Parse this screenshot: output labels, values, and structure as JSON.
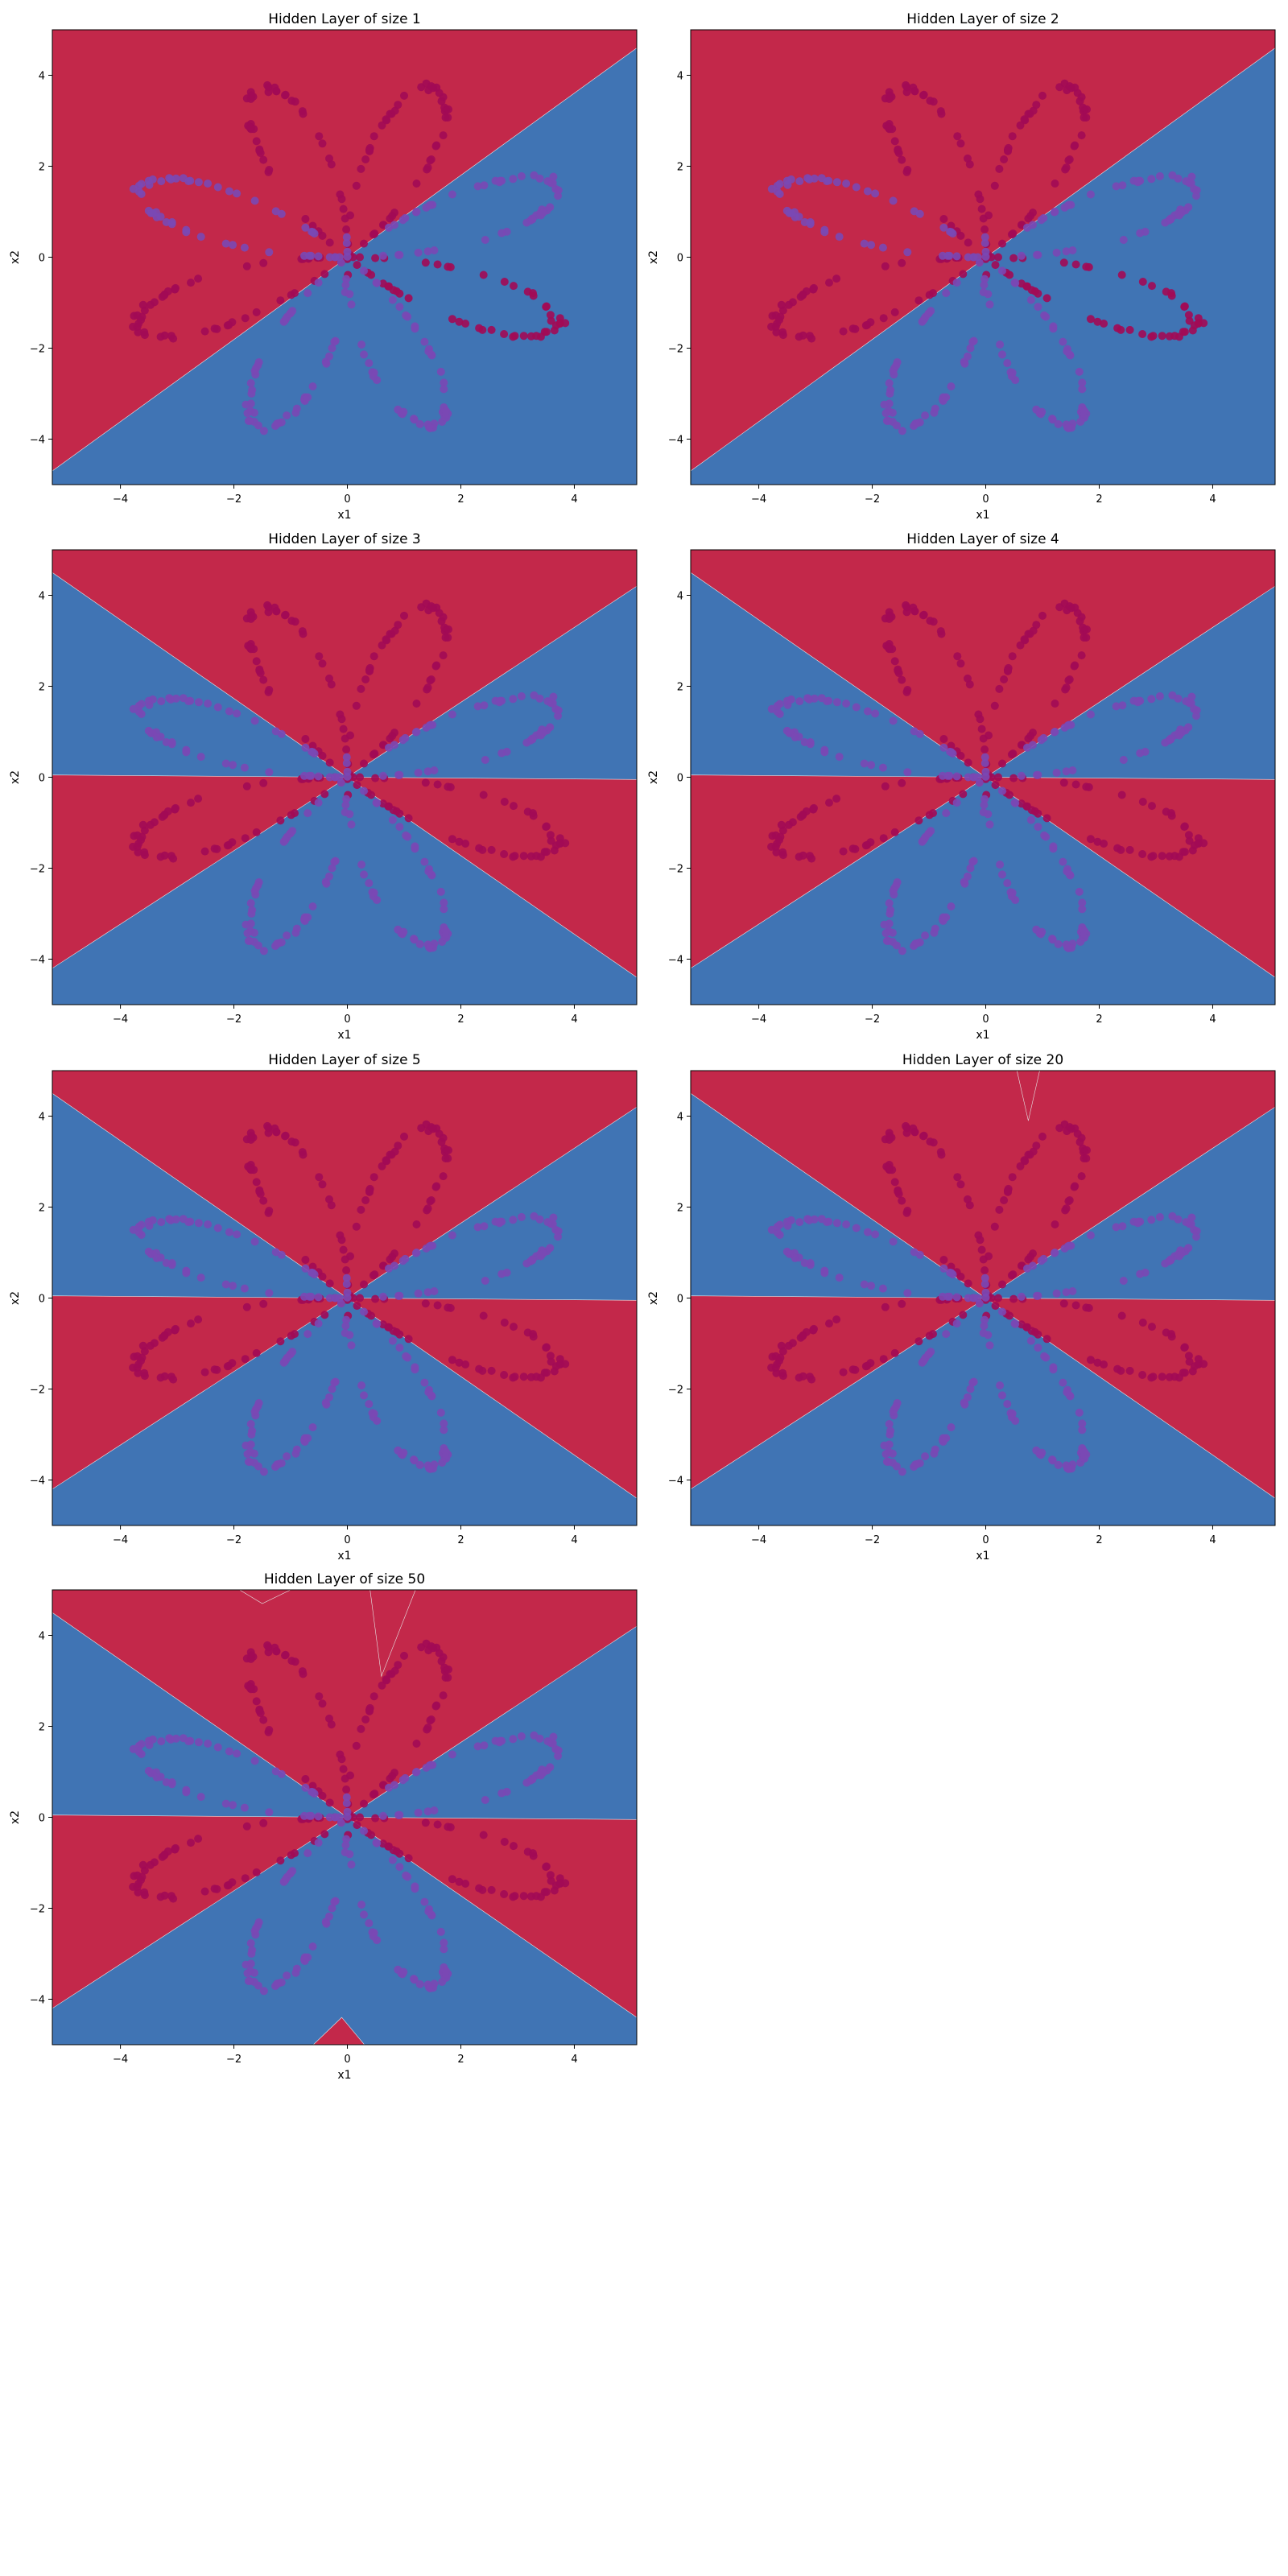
{
  "figure": {
    "colors": {
      "red_region": "#c3284a",
      "blue_region": "#4074b4",
      "red_point": "#a20a55",
      "blue_point": "#7a48b4",
      "boundary": "#e6e6e6"
    }
  },
  "chart_data": [
    {
      "type": "scatter",
      "title": "Hidden Layer of size 1",
      "xlabel": "x1",
      "ylabel": "x2",
      "xlim": [
        -5.2,
        5.1
      ],
      "ylim": [
        -5.0,
        5.0
      ],
      "xticks": [
        -4,
        -2,
        0,
        2,
        4
      ],
      "yticks": [
        -4,
        -2,
        0,
        2,
        4
      ],
      "grid": false,
      "series": [
        {
          "values": []
        },
        {
          "values": []
        }
      ]
    },
    {
      "type": "scatter",
      "title": "Hidden Layer of size 2",
      "xlabel": "x1",
      "ylabel": "x2",
      "xlim": [
        -5.2,
        5.1
      ],
      "ylim": [
        -5.0,
        5.0
      ],
      "xticks": [
        -4,
        -2,
        0,
        2,
        4
      ],
      "yticks": [
        -4,
        -2,
        0,
        2,
        4
      ],
      "grid": false,
      "series": [
        {
          "values": []
        },
        {
          "values": []
        }
      ]
    },
    {
      "type": "scatter",
      "title": "Hidden Layer of size 3",
      "xlabel": "x1",
      "ylabel": "x2",
      "xlim": [
        -5.2,
        5.1
      ],
      "ylim": [
        -5.0,
        5.0
      ],
      "xticks": [
        -4,
        -2,
        0,
        2,
        4
      ],
      "yticks": [
        -4,
        -2,
        0,
        2,
        4
      ],
      "grid": false,
      "series": [
        {
          "values": []
        },
        {
          "values": []
        }
      ]
    },
    {
      "type": "scatter",
      "title": "Hidden Layer of size 4",
      "xlabel": "x1",
      "ylabel": "x2",
      "xlim": [
        -5.2,
        5.1
      ],
      "ylim": [
        -5.0,
        5.0
      ],
      "xticks": [
        -4,
        -2,
        0,
        2,
        4
      ],
      "yticks": [
        -4,
        -2,
        0,
        2,
        4
      ],
      "grid": false,
      "series": [
        {
          "values": []
        },
        {
          "values": []
        }
      ]
    },
    {
      "type": "scatter",
      "title": "Hidden Layer of size 5",
      "xlabel": "x1",
      "ylabel": "x2",
      "xlim": [
        -5.2,
        5.1
      ],
      "ylim": [
        -5.0,
        5.0
      ],
      "xticks": [
        -4,
        -2,
        0,
        2,
        4
      ],
      "yticks": [
        -4,
        -2,
        0,
        2,
        4
      ],
      "grid": false,
      "series": [
        {
          "values": []
        },
        {
          "values": []
        }
      ]
    },
    {
      "type": "scatter",
      "title": "Hidden Layer of size 20",
      "xlabel": "x1",
      "ylabel": "x2",
      "xlim": [
        -5.2,
        5.1
      ],
      "ylim": [
        -5.0,
        5.0
      ],
      "xticks": [
        -4,
        -2,
        0,
        2,
        4
      ],
      "yticks": [
        -4,
        -2,
        0,
        2,
        4
      ],
      "grid": false,
      "series": [
        {
          "values": []
        },
        {
          "values": []
        }
      ]
    },
    {
      "type": "scatter",
      "title": "Hidden Layer of size 50",
      "xlabel": "x1",
      "ylabel": "x2",
      "xlim": [
        -5.2,
        5.1
      ],
      "ylim": [
        -5.0,
        5.0
      ],
      "xticks": [
        -4,
        -2,
        0,
        2,
        4
      ],
      "yticks": [
        -4,
        -2,
        0,
        2,
        4
      ],
      "grid": false,
      "series": [
        {
          "values": []
        },
        {
          "values": []
        }
      ]
    }
  ]
}
